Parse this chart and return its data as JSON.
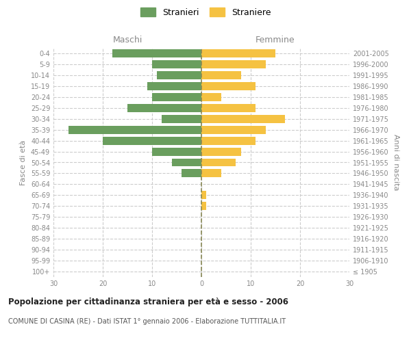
{
  "age_groups": [
    "100+",
    "95-99",
    "90-94",
    "85-89",
    "80-84",
    "75-79",
    "70-74",
    "65-69",
    "60-64",
    "55-59",
    "50-54",
    "45-49",
    "40-44",
    "35-39",
    "30-34",
    "25-29",
    "20-24",
    "15-19",
    "10-14",
    "5-9",
    "0-4"
  ],
  "birth_years": [
    "≤ 1905",
    "1906-1910",
    "1911-1915",
    "1916-1920",
    "1921-1925",
    "1926-1930",
    "1931-1935",
    "1936-1940",
    "1941-1945",
    "1946-1950",
    "1951-1955",
    "1956-1960",
    "1961-1965",
    "1966-1970",
    "1971-1975",
    "1976-1980",
    "1981-1985",
    "1986-1990",
    "1991-1995",
    "1996-2000",
    "2001-2005"
  ],
  "maschi": [
    0,
    0,
    0,
    0,
    0,
    0,
    0,
    0,
    0,
    4,
    6,
    10,
    20,
    27,
    8,
    15,
    10,
    11,
    9,
    10,
    18
  ],
  "femmine": [
    0,
    0,
    0,
    0,
    0,
    0,
    1,
    1,
    0,
    4,
    7,
    8,
    11,
    13,
    17,
    11,
    4,
    11,
    8,
    13,
    15
  ],
  "maschi_color": "#6a9e5e",
  "femmine_color": "#f5c242",
  "title": "Popolazione per cittadinanza straniera per età e sesso - 2006",
  "subtitle": "COMUNE DI CASINA (RE) - Dati ISTAT 1° gennaio 2006 - Elaborazione TUTTITALIA.IT",
  "xlabel_left": "Maschi",
  "xlabel_right": "Femmine",
  "ylabel_left": "Fasce di età",
  "ylabel_right": "Anni di nascita",
  "legend_maschi": "Stranieri",
  "legend_femmine": "Straniere",
  "xlim": 30,
  "background_color": "#ffffff",
  "grid_color": "#cccccc"
}
